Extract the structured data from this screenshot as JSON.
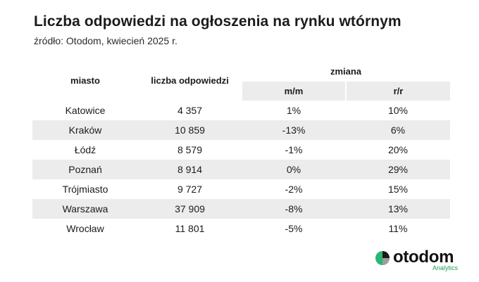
{
  "title": "Liczba odpowiedzi na ogłoszenia na rynku wtórnym",
  "subtitle": "źródło: Otodom, kwiecień 2025 r.",
  "chart_data": {
    "type": "table",
    "columns": {
      "city": "miasto",
      "count": "liczba odpowiedzi",
      "change": "zmiana",
      "mm": "m/m",
      "rr": "r/r"
    },
    "rows": [
      {
        "city": "Katowice",
        "count": "4 357",
        "mm": "1%",
        "rr": "10%"
      },
      {
        "city": "Kraków",
        "count": "10 859",
        "mm": "-13%",
        "rr": "6%"
      },
      {
        "city": "Łódź",
        "count": "8 579",
        "mm": "-1%",
        "rr": "20%"
      },
      {
        "city": "Poznań",
        "count": "8 914",
        "mm": "0%",
        "rr": "29%"
      },
      {
        "city": "Trójmiasto",
        "count": "9 727",
        "mm": "-2%",
        "rr": "15%"
      },
      {
        "city": "Warszawa",
        "count": "37 909",
        "mm": "-8%",
        "rr": "13%"
      },
      {
        "city": "Wrocław",
        "count": "11 801",
        "mm": "-5%",
        "rr": "11%"
      }
    ]
  },
  "logo": {
    "name": "otodom",
    "sub": "Analytics",
    "colors": {
      "green": "#2bb673",
      "dark": "#111111"
    }
  }
}
